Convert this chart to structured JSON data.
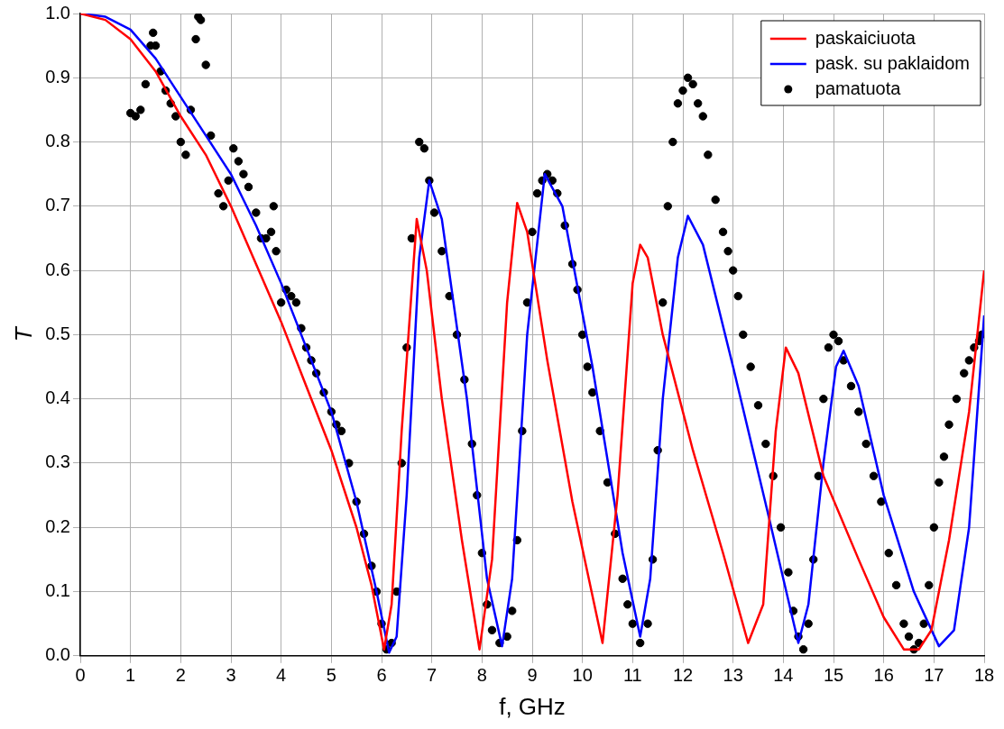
{
  "chart_data": {
    "type": "line",
    "xlabel": "f, GHz",
    "ylabel": "T",
    "xlim": [
      0,
      18
    ],
    "xticks": [
      0,
      1,
      2,
      3,
      4,
      5,
      6,
      7,
      8,
      9,
      10,
      11,
      12,
      13,
      14,
      15,
      16,
      17,
      18
    ],
    "ylim": [
      0,
      1
    ],
    "yticks": [
      {
        "value": 0,
        "label": "0.0"
      },
      0.1,
      0.2,
      0.3,
      0.4,
      0.5,
      0.6,
      0.7,
      0.8,
      0.9,
      {
        "value": 1,
        "label": "1.0"
      }
    ],
    "grid": true,
    "legend": "top right",
    "line_style": "solid",
    "series": [
      {
        "name": "paskaiciuota",
        "color": "#ff0000",
        "x": [
          0,
          0.5,
          1,
          1.5,
          2,
          2.5,
          3,
          3.5,
          4,
          4.5,
          5,
          5.5,
          5.8,
          6.05,
          6.2,
          6.4,
          6.7,
          6.9,
          7.2,
          7.6,
          7.95,
          8.2,
          8.5,
          8.7,
          8.9,
          9.3,
          9.8,
          10.4,
          10.7,
          11.0,
          11.15,
          11.3,
          11.6,
          12.2,
          12.8,
          13.3,
          13.6,
          13.85,
          14.05,
          14.3,
          14.8,
          15.5,
          16.0,
          16.4,
          16.7,
          16.95,
          17.3,
          17.7,
          18
        ],
        "values": [
          1.0,
          0.99,
          0.96,
          0.91,
          0.84,
          0.78,
          0.7,
          0.61,
          0.52,
          0.42,
          0.32,
          0.2,
          0.11,
          0.01,
          0.08,
          0.35,
          0.68,
          0.6,
          0.4,
          0.18,
          0.01,
          0.15,
          0.55,
          0.705,
          0.66,
          0.46,
          0.24,
          0.02,
          0.25,
          0.58,
          0.64,
          0.62,
          0.5,
          0.32,
          0.16,
          0.02,
          0.08,
          0.35,
          0.48,
          0.44,
          0.28,
          0.15,
          0.06,
          0.01,
          0.01,
          0.04,
          0.18,
          0.38,
          0.6
        ]
      },
      {
        "name": "pask. su paklaidom",
        "color": "#0000ff",
        "x": [
          0,
          0.5,
          1,
          1.5,
          2,
          2.5,
          3,
          3.5,
          4,
          4.5,
          5,
          5.5,
          5.9,
          6.15,
          6.3,
          6.5,
          6.75,
          6.95,
          7.2,
          7.7,
          8.1,
          8.4,
          8.6,
          8.9,
          9.25,
          9.6,
          10.2,
          10.8,
          11.15,
          11.35,
          11.6,
          11.9,
          12.1,
          12.4,
          13.0,
          13.7,
          14.3,
          14.5,
          14.8,
          15.05,
          15.2,
          15.5,
          16.0,
          16.6,
          17.1,
          17.4,
          17.7,
          18
        ],
        "values": [
          1.0,
          0.995,
          0.975,
          0.93,
          0.87,
          0.81,
          0.75,
          0.67,
          0.58,
          0.48,
          0.38,
          0.24,
          0.1,
          0.005,
          0.03,
          0.25,
          0.62,
          0.74,
          0.68,
          0.4,
          0.12,
          0.015,
          0.12,
          0.5,
          0.75,
          0.7,
          0.45,
          0.16,
          0.03,
          0.12,
          0.4,
          0.62,
          0.685,
          0.64,
          0.45,
          0.22,
          0.02,
          0.08,
          0.3,
          0.45,
          0.475,
          0.42,
          0.25,
          0.1,
          0.015,
          0.04,
          0.2,
          0.53
        ]
      },
      {
        "name": "pamatuota",
        "type": "scatter",
        "marker": "circle",
        "color": "#000000",
        "x": [
          1.0,
          1.1,
          1.2,
          1.3,
          1.4,
          1.45,
          1.5,
          1.6,
          1.7,
          1.8,
          1.9,
          2.0,
          2.1,
          2.2,
          2.3,
          2.35,
          2.4,
          2.5,
          2.6,
          2.75,
          2.85,
          2.95,
          3.05,
          3.15,
          3.25,
          3.35,
          3.5,
          3.6,
          3.7,
          3.8,
          3.85,
          3.9,
          4.0,
          4.1,
          4.2,
          4.3,
          4.4,
          4.5,
          4.6,
          4.7,
          4.85,
          5.0,
          5.1,
          5.2,
          5.35,
          5.5,
          5.65,
          5.8,
          5.9,
          6.0,
          6.1,
          6.2,
          6.3,
          6.4,
          6.5,
          6.6,
          6.75,
          6.85,
          6.95,
          7.05,
          7.2,
          7.35,
          7.5,
          7.65,
          7.8,
          7.9,
          8.0,
          8.1,
          8.2,
          8.35,
          8.5,
          8.6,
          8.7,
          8.8,
          8.9,
          9.0,
          9.1,
          9.2,
          9.3,
          9.4,
          9.5,
          9.65,
          9.8,
          9.9,
          10.0,
          10.1,
          10.2,
          10.35,
          10.5,
          10.65,
          10.8,
          10.9,
          11.0,
          11.15,
          11.3,
          11.4,
          11.5,
          11.6,
          11.7,
          11.8,
          11.9,
          12.0,
          12.1,
          12.2,
          12.3,
          12.4,
          12.5,
          12.65,
          12.8,
          12.9,
          13.0,
          13.1,
          13.2,
          13.35,
          13.5,
          13.65,
          13.8,
          13.95,
          14.1,
          14.2,
          14.3,
          14.4,
          14.5,
          14.6,
          14.7,
          14.8,
          14.9,
          15.0,
          15.1,
          15.2,
          15.35,
          15.5,
          15.65,
          15.8,
          15.95,
          16.1,
          16.25,
          16.4,
          16.5,
          16.6,
          16.7,
          16.8,
          16.9,
          17.0,
          17.1,
          17.2,
          17.3,
          17.45,
          17.6,
          17.7,
          17.8,
          17.9,
          17.95
        ],
        "values": [
          0.845,
          0.84,
          0.85,
          0.89,
          0.95,
          0.97,
          0.95,
          0.91,
          0.88,
          0.86,
          0.84,
          0.8,
          0.78,
          0.85,
          0.96,
          0.995,
          0.99,
          0.92,
          0.81,
          0.72,
          0.7,
          0.74,
          0.79,
          0.77,
          0.75,
          0.73,
          0.69,
          0.65,
          0.65,
          0.66,
          0.7,
          0.63,
          0.55,
          0.57,
          0.56,
          0.55,
          0.51,
          0.48,
          0.46,
          0.44,
          0.41,
          0.38,
          0.36,
          0.35,
          0.3,
          0.24,
          0.19,
          0.14,
          0.1,
          0.05,
          0.01,
          0.02,
          0.1,
          0.3,
          0.48,
          0.65,
          0.8,
          0.79,
          0.74,
          0.69,
          0.63,
          0.56,
          0.5,
          0.43,
          0.33,
          0.25,
          0.16,
          0.08,
          0.04,
          0.02,
          0.03,
          0.07,
          0.18,
          0.35,
          0.55,
          0.66,
          0.72,
          0.74,
          0.75,
          0.74,
          0.72,
          0.67,
          0.61,
          0.57,
          0.5,
          0.45,
          0.41,
          0.35,
          0.27,
          0.19,
          0.12,
          0.08,
          0.05,
          0.02,
          0.05,
          0.15,
          0.32,
          0.55,
          0.7,
          0.8,
          0.86,
          0.88,
          0.9,
          0.89,
          0.86,
          0.84,
          0.78,
          0.71,
          0.66,
          0.63,
          0.6,
          0.56,
          0.5,
          0.45,
          0.39,
          0.33,
          0.28,
          0.2,
          0.13,
          0.07,
          0.03,
          0.01,
          0.05,
          0.15,
          0.28,
          0.4,
          0.48,
          0.5,
          0.49,
          0.46,
          0.42,
          0.38,
          0.33,
          0.28,
          0.24,
          0.16,
          0.11,
          0.05,
          0.03,
          0.01,
          0.02,
          0.05,
          0.11,
          0.2,
          0.27,
          0.31,
          0.36,
          0.4,
          0.44,
          0.46,
          0.48,
          0.49,
          0.5
        ]
      }
    ]
  }
}
